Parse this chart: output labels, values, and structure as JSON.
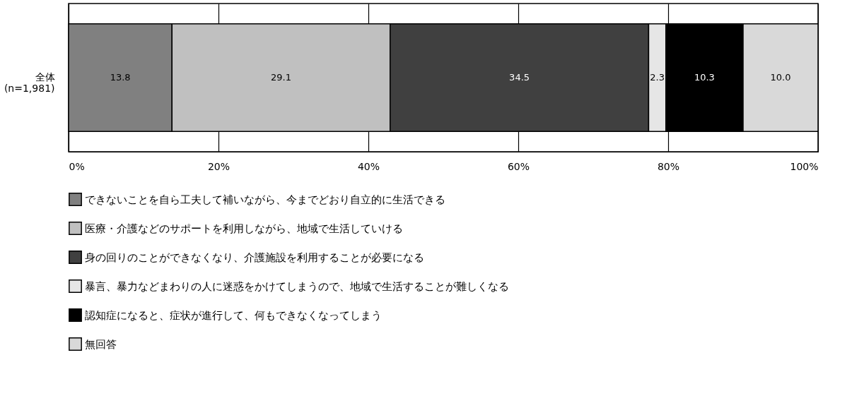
{
  "chart_data": {
    "type": "bar",
    "orientation": "horizontal",
    "stacked": true,
    "categories": [
      "全体\n(n=1,981)"
    ],
    "series": [
      {
        "name": "できないことを自ら工夫して補いながら、今までどおり自立的に生活できる",
        "color": "#808080",
        "values": [
          13.8
        ]
      },
      {
        "name": "医療・介護などのサポートを利用しながら、地域で生活していける",
        "color": "#c0c0c0",
        "values": [
          29.1
        ]
      },
      {
        "name": "身の回りのことができなくなり、介護施設を利用することが必要になる",
        "color": "#404040",
        "values": [
          34.5
        ]
      },
      {
        "name": "暴言、暴力などまわりの人に迷惑をかけてしまうので、地域で生活することが難しくなる",
        "color": "#e6e6e6",
        "values": [
          2.3
        ]
      },
      {
        "name": "認知症になると、症状が進行して、何もできなくなってしまう",
        "color": "#000000",
        "values": [
          10.3
        ]
      },
      {
        "name": "無回答",
        "color": "#d9d9d9",
        "values": [
          10.0
        ]
      }
    ],
    "xlim": [
      0,
      100
    ],
    "xticks": [
      {
        "value": 0,
        "label": "0%"
      },
      {
        "value": 20,
        "label": "20%"
      },
      {
        "value": 40,
        "label": "40%"
      },
      {
        "value": 60,
        "label": "60%"
      },
      {
        "value": 80,
        "label": "80%"
      },
      {
        "value": 100,
        "label": "100%"
      }
    ],
    "grid": "x",
    "legend": "bottom",
    "value_labels": [
      "13.8",
      "29.1",
      "34.5",
      "2.3",
      "10.3",
      "10.0"
    ]
  }
}
